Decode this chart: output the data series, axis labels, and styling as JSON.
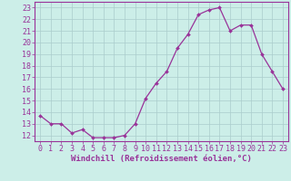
{
  "x": [
    0,
    1,
    2,
    3,
    4,
    5,
    6,
    7,
    8,
    9,
    10,
    11,
    12,
    13,
    14,
    15,
    16,
    17,
    18,
    19,
    20,
    21,
    22,
    23
  ],
  "y": [
    13.7,
    13.0,
    13.0,
    12.2,
    12.5,
    11.8,
    11.8,
    11.8,
    12.0,
    13.0,
    15.2,
    16.5,
    17.5,
    19.5,
    20.7,
    22.4,
    22.8,
    23.0,
    21.0,
    21.5,
    21.5,
    19.0,
    17.5,
    16.0
  ],
  "line_color": "#993399",
  "marker": "D",
  "marker_size": 2.0,
  "linewidth": 0.9,
  "xlabel": "Windchill (Refroidissement éolien,°C)",
  "xlabel_color": "#993399",
  "xlabel_fontsize": 6.5,
  "bg_color": "#cceee8",
  "grid_color": "#aacccc",
  "xlim": [
    -0.5,
    23.5
  ],
  "ylim": [
    11.5,
    23.5
  ],
  "yticks": [
    12,
    13,
    14,
    15,
    16,
    17,
    18,
    19,
    20,
    21,
    22,
    23
  ],
  "xticks": [
    0,
    1,
    2,
    3,
    4,
    5,
    6,
    7,
    8,
    9,
    10,
    11,
    12,
    13,
    14,
    15,
    16,
    17,
    18,
    19,
    20,
    21,
    22,
    23
  ],
  "tick_fontsize": 6.0,
  "tick_color": "#993399",
  "spine_color": "#993399"
}
